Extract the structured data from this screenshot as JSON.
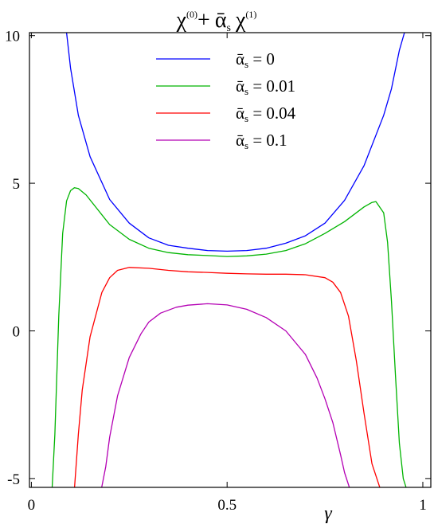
{
  "chart_data": {
    "type": "line",
    "title": {
      "chi": "χ",
      "sup0": "(0)",
      "plus": "+",
      "alpha": "ᾱ",
      "sub_s": "s",
      "chi2": "χ",
      "sup1": "(1)"
    },
    "xlabel": "γ",
    "ylabel": "",
    "xlim": [
      -0.0049,
      1.0204
    ],
    "ylim": [
      -5.3,
      10.1
    ],
    "x_ticks": [
      {
        "value": 0,
        "label": "0"
      },
      {
        "value": 0.5,
        "label": "0.5"
      },
      {
        "value": 1,
        "label": "1"
      }
    ],
    "y_ticks": [
      {
        "value": 10,
        "label": "10"
      },
      {
        "value": 5,
        "label": "5"
      },
      {
        "value": 0,
        "label": "0"
      },
      {
        "value": -5,
        "label": "-5"
      }
    ],
    "grid": false,
    "legend_position": "top-center",
    "series": [
      {
        "name": "ᾱs = 0",
        "legend": {
          "alpha": "ᾱ",
          "sub": "s",
          "rest": " = 0"
        },
        "color": "#0000ff",
        "x": [
          0.0898,
          0.1,
          0.12,
          0.15,
          0.2,
          0.25,
          0.3,
          0.35,
          0.4,
          0.45,
          0.5,
          0.55,
          0.6,
          0.65,
          0.7,
          0.75,
          0.8,
          0.85,
          0.9,
          0.92,
          0.94,
          0.9531
        ],
        "values": [
          10.1,
          8.9,
          7.3,
          5.9,
          4.45,
          3.65,
          3.15,
          2.9,
          2.8,
          2.72,
          2.7,
          2.72,
          2.8,
          2.97,
          3.22,
          3.65,
          4.42,
          5.6,
          7.3,
          8.2,
          9.5,
          10.1
        ]
      },
      {
        "name": "ᾱs = 0.01",
        "legend": {
          "alpha": "ᾱ",
          "sub": "s",
          "rest": " = 0.01"
        },
        "color": "#00b400",
        "x": [
          0.0531,
          0.06,
          0.07,
          0.08,
          0.09,
          0.1,
          0.11,
          0.12,
          0.14,
          0.17,
          0.2,
          0.25,
          0.3,
          0.35,
          0.4,
          0.45,
          0.5,
          0.55,
          0.6,
          0.65,
          0.7,
          0.75,
          0.8,
          0.85,
          0.87,
          0.88,
          0.9,
          0.91,
          0.92,
          0.93,
          0.94,
          0.95,
          0.9571
        ],
        "values": [
          -5.3,
          -3.5,
          0.5,
          3.3,
          4.4,
          4.75,
          4.85,
          4.82,
          4.6,
          4.1,
          3.6,
          3.1,
          2.8,
          2.65,
          2.58,
          2.55,
          2.52,
          2.54,
          2.6,
          2.72,
          2.95,
          3.3,
          3.7,
          4.2,
          4.35,
          4.38,
          4.0,
          3.0,
          1.0,
          -1.5,
          -3.8,
          -5.0,
          -5.3
        ]
      },
      {
        "name": "ᾱs = 0.04",
        "legend": {
          "alpha": "ᾱ",
          "sub": "s",
          "rest": " = 0.04"
        },
        "color": "#ff0000",
        "x": [
          0.1102,
          0.12,
          0.13,
          0.15,
          0.18,
          0.2,
          0.22,
          0.25,
          0.3,
          0.35,
          0.4,
          0.45,
          0.5,
          0.55,
          0.6,
          0.65,
          0.7,
          0.75,
          0.77,
          0.79,
          0.81,
          0.83,
          0.85,
          0.87,
          0.89
        ],
        "values": [
          -5.3,
          -3.5,
          -2.0,
          -0.2,
          1.3,
          1.8,
          2.05,
          2.15,
          2.12,
          2.05,
          2.0,
          1.98,
          1.95,
          1.93,
          1.92,
          1.92,
          1.9,
          1.8,
          1.65,
          1.3,
          0.5,
          -1.0,
          -2.8,
          -4.5,
          -5.3
        ]
      },
      {
        "name": "ᾱs = 0.1",
        "legend": {
          "alpha": "ᾱ",
          "sub": "s",
          "rest": " = 0.1"
        },
        "color": "#b400b4",
        "x": [
          0.1796,
          0.19,
          0.2,
          0.22,
          0.25,
          0.28,
          0.3,
          0.33,
          0.37,
          0.4,
          0.45,
          0.5,
          0.55,
          0.6,
          0.65,
          0.7,
          0.73,
          0.75,
          0.77,
          0.79,
          0.8,
          0.8122
        ],
        "values": [
          -5.3,
          -4.6,
          -3.6,
          -2.2,
          -0.9,
          -0.1,
          0.3,
          0.6,
          0.8,
          0.87,
          0.92,
          0.88,
          0.73,
          0.45,
          0.0,
          -0.8,
          -1.6,
          -2.3,
          -3.1,
          -4.2,
          -4.8,
          -5.3
        ]
      }
    ]
  }
}
